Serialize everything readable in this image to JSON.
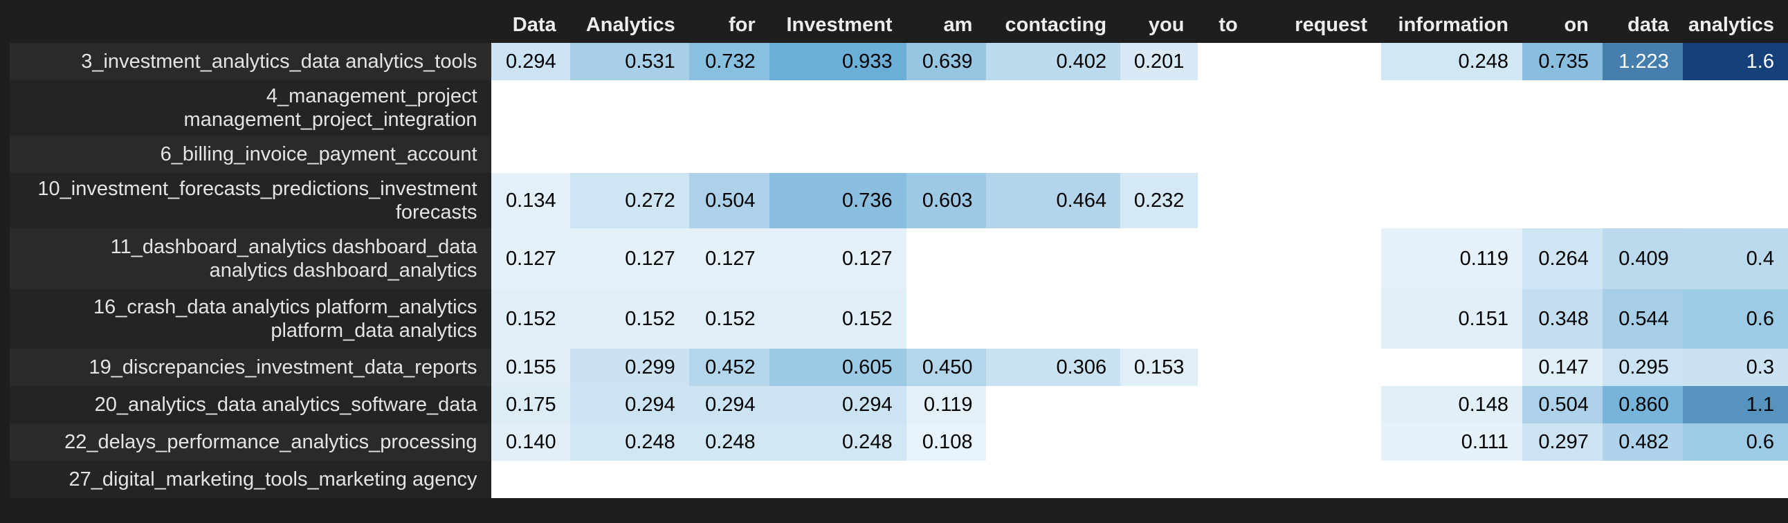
{
  "columns": [
    "Data",
    "Analytics",
    "for",
    "Investment",
    "am",
    "contacting",
    "you",
    "to",
    "request",
    "information",
    "on",
    "data",
    "analytics"
  ],
  "rows": [
    {
      "label": "3_investment_analytics_data analytics_tools",
      "values": [
        "0.294",
        "0.531",
        "0.732",
        "0.933",
        "0.639",
        "0.402",
        "0.201",
        "",
        "",
        "0.248",
        "0.735",
        "1.223",
        "1.6"
      ]
    },
    {
      "label": "4_management_project\nmanagement_project_integration",
      "values": [
        "",
        "",
        "",
        "",
        "",
        "",
        "",
        "",
        "",
        "",
        "",
        "",
        ""
      ]
    },
    {
      "label": "6_billing_invoice_payment_account",
      "values": [
        "",
        "",
        "",
        "",
        "",
        "",
        "",
        "",
        "",
        "",
        "",
        "",
        ""
      ]
    },
    {
      "label": "10_investment_forecasts_predictions_investment\nforecasts",
      "values": [
        "0.134",
        "0.272",
        "0.504",
        "0.736",
        "0.603",
        "0.464",
        "0.232",
        "",
        "",
        "",
        "",
        "",
        ""
      ]
    },
    {
      "label": "11_dashboard_analytics dashboard_data\nanalytics dashboard_analytics",
      "values": [
        "0.127",
        "0.127",
        "0.127",
        "0.127",
        "",
        "",
        "",
        "",
        "",
        "0.119",
        "0.264",
        "0.409",
        "0.4"
      ]
    },
    {
      "label": "16_crash_data analytics platform_analytics\nplatform_data analytics",
      "values": [
        "0.152",
        "0.152",
        "0.152",
        "0.152",
        "",
        "",
        "",
        "",
        "",
        "0.151",
        "0.348",
        "0.544",
        "0.6"
      ]
    },
    {
      "label": "19_discrepancies_investment_data_reports",
      "values": [
        "0.155",
        "0.299",
        "0.452",
        "0.605",
        "0.450",
        "0.306",
        "0.153",
        "",
        "",
        "",
        "0.147",
        "0.295",
        "0.3"
      ]
    },
    {
      "label": "20_analytics_data analytics_software_data",
      "values": [
        "0.175",
        "0.294",
        "0.294",
        "0.294",
        "0.119",
        "",
        "",
        "",
        "",
        "0.148",
        "0.504",
        "0.860",
        "1.1"
      ]
    },
    {
      "label": "22_delays_performance_analytics_processing",
      "values": [
        "0.140",
        "0.248",
        "0.248",
        "0.248",
        "0.108",
        "",
        "",
        "",
        "",
        "0.111",
        "0.297",
        "0.482",
        "0.6"
      ]
    },
    {
      "label": "27_digital_marketing_tools_marketing agency",
      "values": [
        "",
        "",
        "",
        "",
        "",
        "",
        "",
        "",
        "",
        "",
        "",
        "",
        ""
      ]
    }
  ],
  "colormap": {
    "name": "Blues",
    "low": "#f7fbff",
    "high": "#08306b",
    "vmax": 1.7
  }
}
